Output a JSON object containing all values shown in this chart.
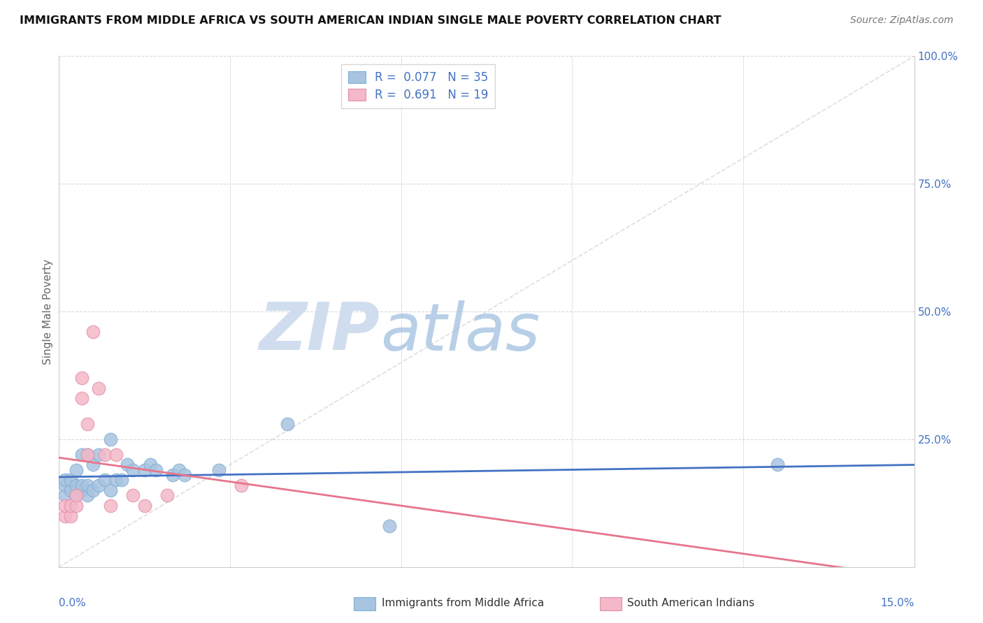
{
  "title": "IMMIGRANTS FROM MIDDLE AFRICA VS SOUTH AMERICAN INDIAN SINGLE MALE POVERTY CORRELATION CHART",
  "source": "Source: ZipAtlas.com",
  "ylabel": "Single Male Poverty",
  "legend_blue_R": "0.077",
  "legend_blue_N": "35",
  "legend_pink_R": "0.691",
  "legend_pink_N": "19",
  "legend_blue_label": "Immigrants from Middle Africa",
  "legend_pink_label": "South American Indians",
  "blue_color": "#a8c4e0",
  "pink_color": "#f4b8c8",
  "blue_edge_color": "#7fafd4",
  "pink_edge_color": "#e090a8",
  "blue_line_color": "#4472c4",
  "pink_line_color": "#e8748a",
  "text_color": "#4472c4",
  "background_color": "#ffffff",
  "grid_color": "#d9d9d9",
  "watermark_zip_color": "#c5d8ee",
  "watermark_atlas_color": "#a8c8e8",
  "blue_scatter_x": [
    0.001,
    0.001,
    0.001,
    0.002,
    0.002,
    0.003,
    0.003,
    0.003,
    0.004,
    0.004,
    0.004,
    0.005,
    0.005,
    0.005,
    0.006,
    0.006,
    0.007,
    0.007,
    0.008,
    0.009,
    0.009,
    0.01,
    0.011,
    0.012,
    0.013,
    0.015,
    0.016,
    0.017,
    0.02,
    0.021,
    0.022,
    0.028,
    0.04,
    0.058,
    0.126
  ],
  "blue_scatter_y": [
    0.14,
    0.16,
    0.17,
    0.15,
    0.17,
    0.14,
    0.16,
    0.19,
    0.15,
    0.16,
    0.22,
    0.14,
    0.16,
    0.22,
    0.15,
    0.2,
    0.22,
    0.16,
    0.17,
    0.15,
    0.25,
    0.17,
    0.17,
    0.2,
    0.19,
    0.19,
    0.2,
    0.19,
    0.18,
    0.19,
    0.18,
    0.19,
    0.28,
    0.08,
    0.2
  ],
  "pink_scatter_x": [
    0.001,
    0.001,
    0.002,
    0.002,
    0.003,
    0.003,
    0.004,
    0.004,
    0.005,
    0.005,
    0.006,
    0.007,
    0.008,
    0.009,
    0.01,
    0.013,
    0.015,
    0.019,
    0.032
  ],
  "pink_scatter_y": [
    0.1,
    0.12,
    0.1,
    0.12,
    0.12,
    0.14,
    0.33,
    0.37,
    0.28,
    0.22,
    0.46,
    0.35,
    0.22,
    0.12,
    0.22,
    0.14,
    0.12,
    0.14,
    0.16
  ],
  "xmin": 0.0,
  "xmax": 0.15,
  "ymin": 0.0,
  "ymax": 1.0,
  "yticks": [
    0.0,
    0.25,
    0.5,
    0.75,
    1.0
  ],
  "ytick_labels": [
    "",
    "25.0%",
    "50.0%",
    "75.0%",
    "100.0%"
  ],
  "xtick_positions": [
    0.0,
    0.03,
    0.06,
    0.09,
    0.12,
    0.15
  ],
  "diag_line_color": "#d0d0d0"
}
